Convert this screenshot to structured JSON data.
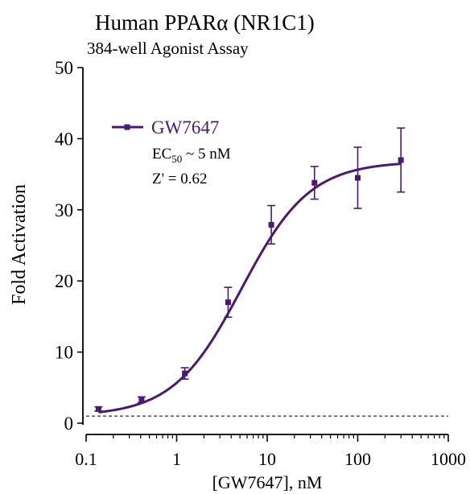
{
  "chart_data": {
    "type": "scatter",
    "title": "Human PPARα (NR1C1)",
    "subtitle": "384-well Agonist Assay",
    "xlabel": "[GW7647], nM",
    "ylabel": "Fold Activation",
    "x_scale": "log",
    "xlim": [
      0.1,
      1000
    ],
    "ylim": [
      0,
      50
    ],
    "x_ticks": [
      "0.1",
      "1",
      "10",
      "100",
      "1000"
    ],
    "y_ticks": [
      "0",
      "10",
      "20",
      "30",
      "40",
      "50"
    ],
    "baseline_y": 1,
    "grid": false,
    "legend_position": "top-left",
    "color": "#4b1a6e",
    "series": [
      {
        "name": "GW7647",
        "x": [
          0.137,
          0.41,
          1.23,
          3.7,
          11.1,
          33.3,
          100,
          300
        ],
        "y": [
          2.0,
          3.3,
          7.0,
          17.0,
          27.9,
          33.8,
          34.5,
          37.0
        ],
        "error": [
          0.3,
          0.4,
          0.8,
          2.1,
          2.7,
          2.3,
          4.3,
          4.5
        ]
      }
    ],
    "fit_curve": {
      "bottom": 1.0,
      "top": 36.8,
      "ec50": 5.2,
      "hill": 1.15
    },
    "annotations": {
      "ec50_prefix": "EC",
      "ec50_sub": "50",
      "ec50_suffix": " ~ 5 nM",
      "z_prime": "Z' = 0.62"
    }
  }
}
